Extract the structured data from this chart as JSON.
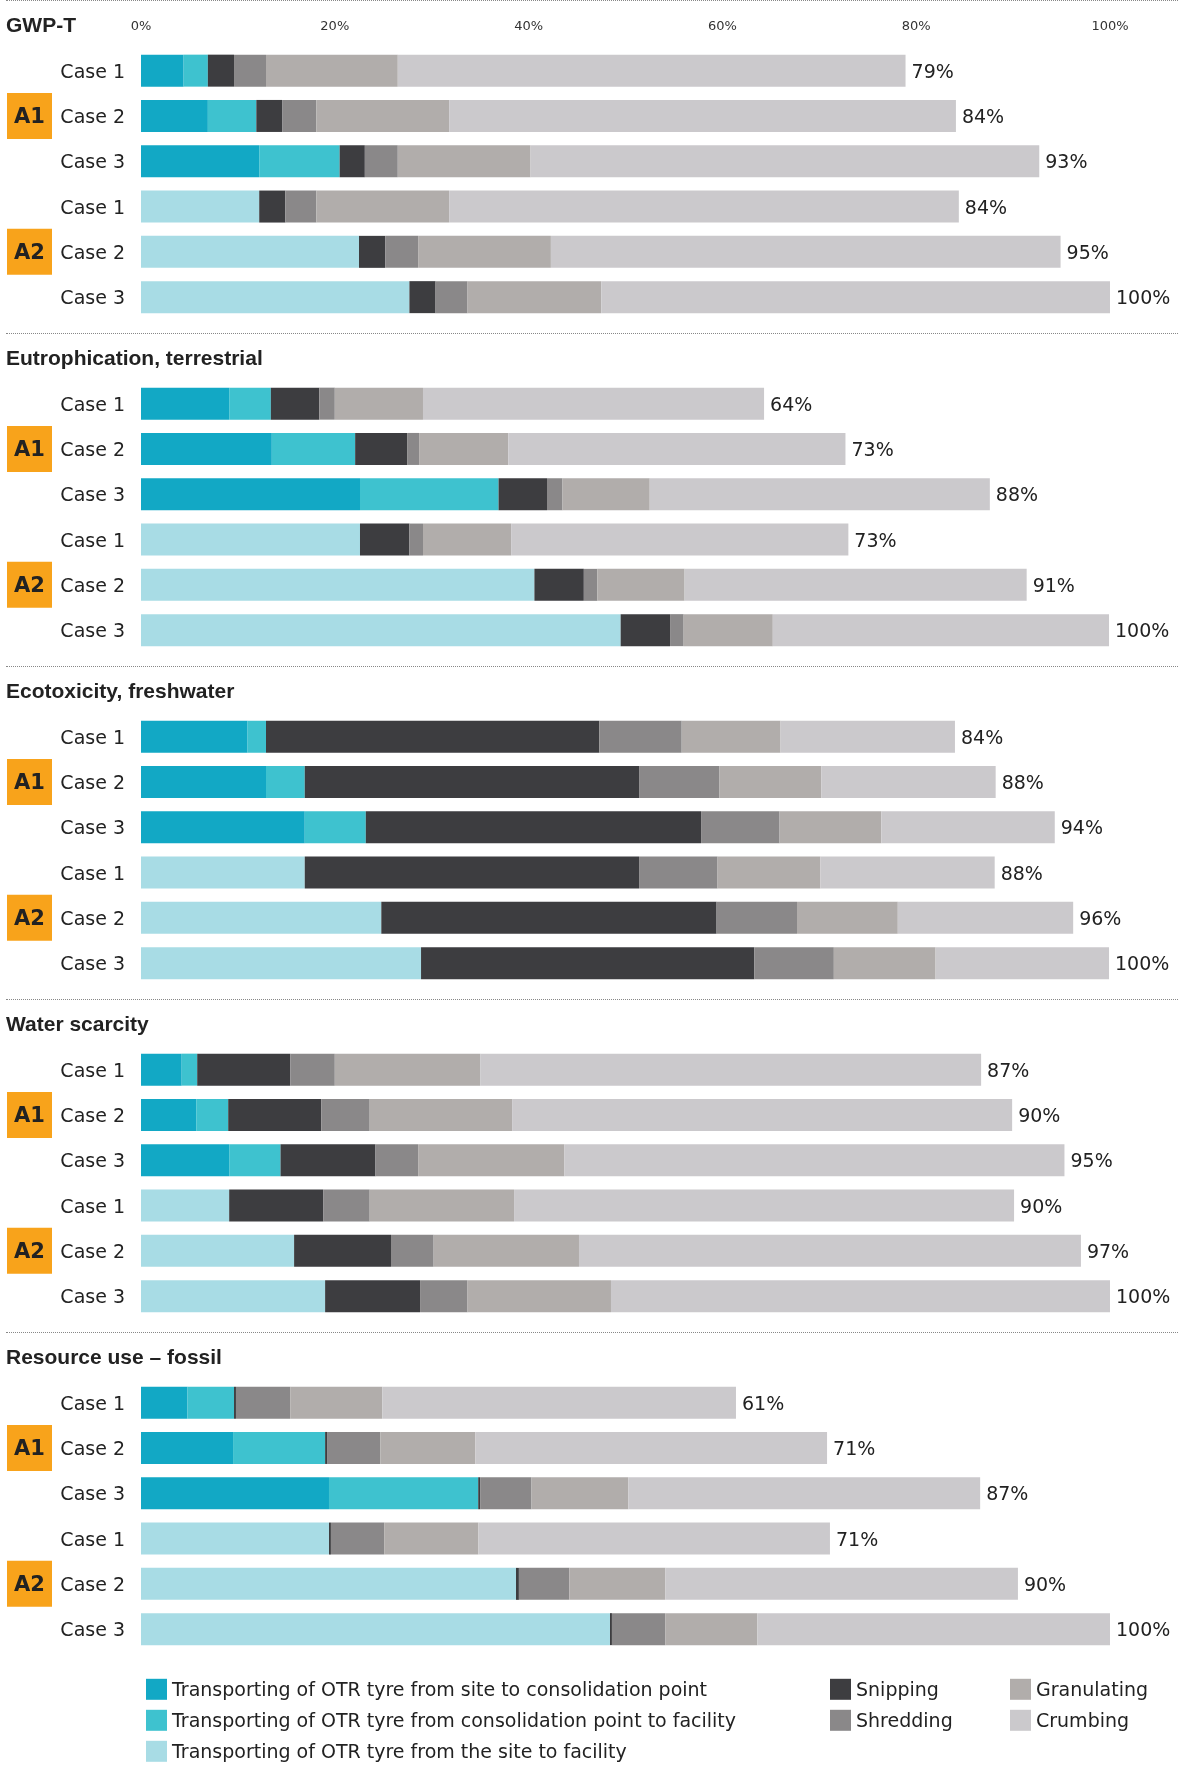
{
  "chart_data": [
    {
      "type": "bar",
      "orientation": "horizontal",
      "stacked": true,
      "title": "GWP-T",
      "categories": [
        "Case 1",
        "Case 2",
        "Case 3",
        "Case 1",
        "Case 2",
        "Case 3"
      ],
      "annotations": [
        "A1",
        "A2"
      ],
      "xlim": [
        0,
        100
      ],
      "xticks": [
        {
          "value": 0,
          "label": "0%"
        },
        {
          "value": 20,
          "label": "20%"
        },
        {
          "value": 40,
          "label": "40%"
        },
        {
          "value": 60,
          "label": "60%"
        },
        {
          "value": 80,
          "label": "80%"
        },
        {
          "value": 100,
          "label": "100%"
        }
      ],
      "grid": false,
      "legend": false,
      "totals": [
        "79%",
        "84%",
        "93%",
        "84%",
        "95%",
        "100%"
      ],
      "series": [
        {
          "color": "#12a8c5",
          "values": [
            4.4,
            6.9,
            12.2,
            null,
            null,
            null
          ]
        },
        {
          "color": "#3ec2cf",
          "values": [
            2.5,
            5.0,
            8.3,
            null,
            null,
            null
          ]
        },
        {
          "color": "#a8dce5",
          "values": [
            null,
            null,
            null,
            12.2,
            22.5,
            27.7
          ]
        },
        {
          "color": "#3d3d40",
          "values": [
            2.7,
            2.7,
            2.6,
            2.7,
            2.7,
            2.7
          ]
        },
        {
          "color": "#8a8889",
          "values": [
            3.3,
            3.5,
            3.4,
            3.2,
            3.4,
            3.3
          ]
        },
        {
          "color": "#b1adab",
          "values": [
            13.6,
            13.7,
            13.7,
            13.7,
            13.7,
            13.8
          ]
        },
        {
          "color": "#cbc9cc",
          "values": [
            52.4,
            52.3,
            52.5,
            52.6,
            52.6,
            52.5
          ]
        }
      ]
    },
    {
      "type": "bar",
      "orientation": "horizontal",
      "stacked": true,
      "title": "Eutrophication, terrestrial",
      "categories": [
        "Case 1",
        "Case 2",
        "Case 3",
        "Case 1",
        "Case 2",
        "Case 3"
      ],
      "annotations": [
        "A1",
        "A2"
      ],
      "xlim": [
        0,
        100
      ],
      "tick_labels": "y",
      "grid": false,
      "legend": false,
      "totals": [
        "64%",
        "73%",
        "88%",
        "73%",
        "91%",
        "100%"
      ],
      "series": [
        {
          "color": "#12a8c5",
          "values": [
            9.1,
            13.5,
            22.6,
            null,
            null,
            null
          ]
        },
        {
          "color": "#3ec2cf",
          "values": [
            4.3,
            8.6,
            14.3,
            null,
            null,
            null
          ]
        },
        {
          "color": "#a8dce5",
          "values": [
            null,
            null,
            null,
            22.6,
            40.6,
            49.5
          ]
        },
        {
          "color": "#3d3d40",
          "values": [
            5.0,
            5.4,
            5.0,
            5.1,
            5.1,
            5.1
          ]
        },
        {
          "color": "#8a8889",
          "values": [
            1.6,
            1.2,
            1.6,
            1.4,
            1.4,
            1.4
          ]
        },
        {
          "color": "#b1adab",
          "values": [
            9.1,
            9.2,
            9.0,
            9.1,
            9.0,
            9.2
          ]
        },
        {
          "color": "#cbc9cc",
          "values": [
            35.2,
            34.8,
            35.1,
            34.8,
            35.3,
            34.7
          ]
        }
      ]
    },
    {
      "type": "bar",
      "orientation": "horizontal",
      "stacked": true,
      "title": "Ecotoxicity, freshwater",
      "categories": [
        "Case 1",
        "Case 2",
        "Case 3",
        "Case 1",
        "Case 2",
        "Case 3"
      ],
      "annotations": [
        "A1",
        "A2"
      ],
      "xlim": [
        0,
        100
      ],
      "tick_labels": "y",
      "grid": false,
      "legend": false,
      "totals": [
        "84%",
        "88%",
        "94%",
        "88%",
        "96%",
        "100%"
      ],
      "series": [
        {
          "color": "#12a8c5",
          "values": [
            11.0,
            12.9,
            16.9,
            null,
            null,
            null
          ]
        },
        {
          "color": "#3ec2cf",
          "values": [
            1.9,
            4.0,
            6.3,
            null,
            null,
            null
          ]
        },
        {
          "color": "#a8dce5",
          "values": [
            null,
            null,
            null,
            16.9,
            24.8,
            28.9
          ]
        },
        {
          "color": "#3d3d40",
          "values": [
            34.4,
            34.5,
            34.6,
            34.5,
            34.6,
            34.4
          ]
        },
        {
          "color": "#8a8889",
          "values": [
            8.5,
            8.3,
            8.1,
            8.1,
            8.3,
            8.2
          ]
        },
        {
          "color": "#b1adab",
          "values": [
            10.2,
            10.5,
            10.5,
            10.6,
            10.4,
            10.5
          ]
        },
        {
          "color": "#cbc9cc",
          "values": [
            18.0,
            18.0,
            17.9,
            18.0,
            18.1,
            17.9
          ]
        }
      ]
    },
    {
      "type": "bar",
      "orientation": "horizontal",
      "stacked": true,
      "title": "Water scarcity",
      "categories": [
        "Case 1",
        "Case 2",
        "Case 3",
        "Case 1",
        "Case 2",
        "Case 3"
      ],
      "annotations": [
        "A1",
        "A2"
      ],
      "xlim": [
        0,
        100
      ],
      "tick_labels": "y",
      "grid": false,
      "legend": false,
      "totals": [
        "87%",
        "90%",
        "95%",
        "90%",
        "97%",
        "100%"
      ],
      "series": [
        {
          "color": "#12a8c5",
          "values": [
            4.2,
            5.7,
            9.1,
            null,
            null,
            null
          ]
        },
        {
          "color": "#3ec2cf",
          "values": [
            1.6,
            3.3,
            5.3,
            null,
            null,
            null
          ]
        },
        {
          "color": "#a8dce5",
          "values": [
            null,
            null,
            null,
            9.1,
            15.8,
            19.0
          ]
        },
        {
          "color": "#3d3d40",
          "values": [
            9.6,
            9.6,
            9.8,
            9.7,
            10.0,
            9.8
          ]
        },
        {
          "color": "#8a8889",
          "values": [
            4.6,
            5.0,
            4.4,
            4.8,
            4.4,
            4.9
          ]
        },
        {
          "color": "#b1adab",
          "values": [
            15.0,
            14.7,
            15.1,
            14.9,
            15.0,
            14.8
          ]
        },
        {
          "color": "#cbc9cc",
          "values": [
            51.7,
            51.6,
            51.6,
            51.6,
            51.8,
            51.6
          ]
        }
      ]
    },
    {
      "type": "bar",
      "orientation": "horizontal",
      "stacked": true,
      "title": "Resource use – fossil",
      "categories": [
        "Case 1",
        "Case 2",
        "Case 3",
        "Case 1",
        "Case 2",
        "Case 3"
      ],
      "annotations": [
        "A1",
        "A2"
      ],
      "xlim": [
        0,
        100
      ],
      "tick_labels": "y",
      "grid": false,
      "legend": "bottom",
      "totals": [
        "61%",
        "71%",
        "87%",
        "71%",
        "90%",
        "100%"
      ],
      "series": [
        {
          "name": "Transporting of OTR tyre from site to consolidation point",
          "color": "#12a8c5",
          "values": [
            4.8,
            9.5,
            19.4,
            null,
            null,
            null
          ]
        },
        {
          "name": "Transporting of OTR tyre from consolidation point to facility",
          "color": "#3ec2cf",
          "values": [
            4.8,
            9.5,
            15.4,
            null,
            null,
            null
          ]
        },
        {
          "name": "Transporting of OTR tyre from the site to facility",
          "color": "#a8dce5",
          "values": [
            null,
            null,
            null,
            19.4,
            38.7,
            48.4
          ]
        },
        {
          "name": "Snipping",
          "color": "#3d3d40",
          "values": [
            0.2,
            0.2,
            0.2,
            0.2,
            0.3,
            0.2
          ]
        },
        {
          "name": "Shredding",
          "color": "#8a8889",
          "values": [
            5.6,
            5.5,
            5.3,
            5.5,
            5.2,
            5.5
          ]
        },
        {
          "name": "Granulating",
          "color": "#b1adab",
          "values": [
            9.5,
            9.8,
            10.0,
            9.7,
            9.9,
            9.5
          ]
        },
        {
          "name": "Crumbing",
          "color": "#cbc9cc",
          "values": [
            36.5,
            36.3,
            36.3,
            36.3,
            36.4,
            36.4
          ]
        }
      ]
    }
  ]
}
